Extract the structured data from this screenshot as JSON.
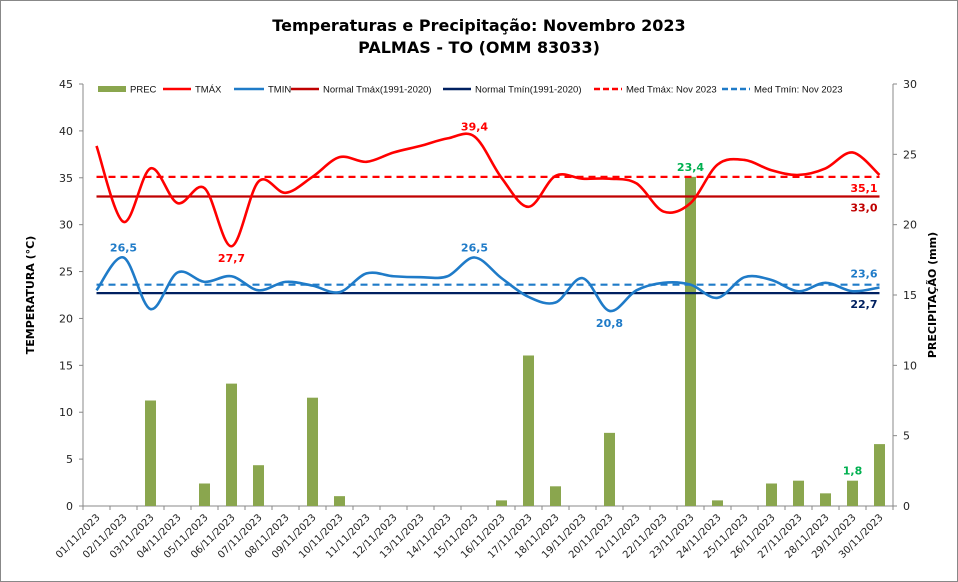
{
  "chart_data": {
    "type": "bar+line",
    "title": "Temperaturas  e Precipitação: Novembro  2023",
    "subtitle": "PALMAS - TO (OMM 83033)",
    "ylabel": "TEMPERATURA  (°C)",
    "y2label": "PRECIPITAÇÃO (mm)",
    "ylim": [
      0,
      45
    ],
    "y2lim": [
      0,
      30
    ],
    "yticks": [
      "0",
      "5",
      "10",
      "15",
      "20",
      "25",
      "30",
      "35",
      "40",
      "45"
    ],
    "y2ticks": [
      "0",
      "5",
      "10",
      "15",
      "20",
      "25",
      "30"
    ],
    "legend_position": "top",
    "categories": [
      "01/11/2023",
      "02/11/2023",
      "03/11/2023",
      "04/11/2023",
      "05/11/2023",
      "06/11/2023",
      "07/11/2023",
      "08/11/2023",
      "09/11/2023",
      "10/11/2023",
      "11/11/2023",
      "12/11/2023",
      "13/11/2023",
      "14/11/2023",
      "15/11/2023",
      "16/11/2023",
      "17/11/2023",
      "18/11/2023",
      "19/11/2023",
      "20/11/2023",
      "21/11/2023",
      "22/11/2023",
      "23/11/2023",
      "24/11/2023",
      "25/11/2023",
      "26/11/2023",
      "27/11/2023",
      "28/11/2023",
      "29/11/2023",
      "30/11/2023"
    ],
    "series": [
      {
        "name": "PREC",
        "type": "bar",
        "axis": "right",
        "color": "#8AA64E",
        "values": [
          0,
          0,
          7.5,
          0,
          1.6,
          8.7,
          2.9,
          0,
          7.7,
          0.7,
          0,
          0,
          0,
          0,
          0,
          0.4,
          10.7,
          1.4,
          0,
          5.2,
          0,
          0,
          23.4,
          0.4,
          0,
          1.6,
          1.8,
          0.9,
          1.8,
          4.4
        ]
      },
      {
        "name": "TMÁX",
        "type": "line",
        "axis": "left",
        "color": "#FF0000",
        "values": [
          38.4,
          30.3,
          36.0,
          32.3,
          33.9,
          27.7,
          34.6,
          33.4,
          35.1,
          37.2,
          36.7,
          37.7,
          38.4,
          39.2,
          39.4,
          35.0,
          31.9,
          35.2,
          34.9,
          34.9,
          34.4,
          31.4,
          32.3,
          36.4,
          36.9,
          35.8,
          35.3,
          36.0,
          37.7,
          35.3
        ]
      },
      {
        "name": "TMIN",
        "type": "line",
        "axis": "left",
        "color": "#1F7BC8",
        "values": [
          23.0,
          26.5,
          21.0,
          24.9,
          23.9,
          24.5,
          23.0,
          23.9,
          23.5,
          22.8,
          24.8,
          24.5,
          24.4,
          24.5,
          26.5,
          24.3,
          22.3,
          21.7,
          24.3,
          20.8,
          23.0,
          23.8,
          23.6,
          22.2,
          24.4,
          24.1,
          22.9,
          23.8,
          22.9,
          23.3
        ]
      },
      {
        "name": "Normal Tmáx(1991-2020)",
        "type": "hline",
        "axis": "left",
        "color": "#C00000",
        "value": 33.0
      },
      {
        "name": "Normal Tmín(1991-2020)",
        "type": "hline",
        "axis": "left",
        "color": "#002060",
        "value": 22.7
      },
      {
        "name": "Med Tmáx: Nov 2023",
        "type": "hline-dashed",
        "axis": "left",
        "color": "#FF0000",
        "value": 35.1
      },
      {
        "name": "Med Tmín: Nov 2023",
        "type": "hline-dashed",
        "axis": "left",
        "color": "#1F7BC8",
        "value": 23.6
      }
    ],
    "annotations": [
      {
        "text": "39,4",
        "series": "TMÁX",
        "index": 14,
        "color": "#FF0000"
      },
      {
        "text": "27,7",
        "series": "TMÁX",
        "index": 5,
        "color": "#FF0000",
        "below": true
      },
      {
        "text": "26,5",
        "series": "TMIN",
        "index": 1,
        "color": "#1F7BC8"
      },
      {
        "text": "26,5",
        "series": "TMIN",
        "index": 14,
        "color": "#1F7BC8"
      },
      {
        "text": "20,8",
        "series": "TMIN",
        "index": 19,
        "color": "#1F7BC8",
        "below": true
      },
      {
        "text": "23,4",
        "series": "PREC",
        "index": 22,
        "color": "#00B050"
      },
      {
        "text": "1,8",
        "series": "PREC",
        "index": 28,
        "color": "#00B050"
      },
      {
        "text": "35,1",
        "series": "Med Tmáx: Nov 2023",
        "color": "#FF0000",
        "below": true
      },
      {
        "text": "33,0",
        "series": "Normal Tmáx(1991-2020)",
        "color": "#C00000",
        "below": true
      },
      {
        "text": "23,6",
        "series": "Med Tmín: Nov 2023",
        "color": "#1F7BC8"
      },
      {
        "text": "22,7",
        "series": "Normal Tmín(1991-2020)",
        "color": "#002060",
        "below": true
      }
    ]
  }
}
